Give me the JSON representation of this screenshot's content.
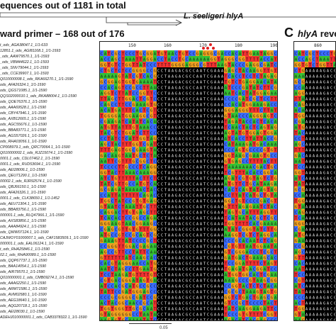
{
  "header": {
    "title": "equences out of 1181 in total",
    "species_name": "L. seeligeri hlyA"
  },
  "panel_b": {
    "title": "ward primer – 168 out of 176",
    "ruler_ticks": [
      "150",
      "160",
      "170",
      "180",
      "190"
    ]
  },
  "panel_c": {
    "letter": "C",
    "title_italic": "hlyA",
    "title_rest": " rever",
    "ruler_tick": "860"
  },
  "sequence_names": [
    "t_ods_AGA38047.1_1/1-633",
    "12851.1_ods_AGI81168.1_1/1-1593",
    "_ods_AAW79570.1_1/1-1593",
    "_ods_VBM44622.1_1/1-1593",
    "_ods_SNV79044.1_1/1-1593",
    "_ods_CCE39907.1_1/1-1593",
    "Q010000008.1_ods_RKA66270.1_1/1-1590",
    "ods_AFA26324.1_1/1-1590",
    "ods_QGS71085.1_1/1-1590",
    "QQS02000010.1_ods_RKA88004.1_1/1-1590",
    "ods_QOE76376.1_1/1-1590",
    "ods_AAA69528.1_1/1-1590",
    "ods_CBY47946.1_1/1-1590",
    "ods_AXB12665.1_1/1-1590",
    "ods_AGC55676.1_1/1-1590",
    "ods_BBA83771.1_1/1-1590",
    "ods_AGS57026.1_1/1-1590",
    "ods_RHA03056.1_1/1-1590",
    "CP008979.1_ods_QRC70064.1_1/1-1590",
    "Q010000002.1_ods_RJZ15074.1_1/1-1590",
    "0001.1_ods_CDL07462.1_1/1-1590",
    "0001.1_ods_RUD53694.1_1/1-1590",
    "ods_AEI28006.1_1/1-1590",
    "ods_QEU71290.1_1/1-1590",
    "00002.1_ods_RJR92574.1_1/1-1590",
    "ods_QBJ66150.1_1/1-1590",
    "ods_AFA26326.1_1/1-1590",
    "0001.1_ods_CLK38650.1_1/1-1452",
    "ods_AEU71304.1_1/1-1590",
    "ods_BBA83756.1_1/1-1590",
    "000001.1_ods_RLQ47966.1_1/1-1590",
    "ods_AXS83856.1_1/1-1590",
    "ods_AAA84924.1_1/1-1590",
    "ods_QWW07124.1_1/1-1590",
    "CAJWOY01000007.1_ods_CAF1583509.1_1/1-1590",
    "000001.1_ods_EAL06124.1_1/1-1590",
    "t_ods_RHA25846.1_1/1-1590",
    "02.1_ods_RHA90089.1_1/1-1590",
    "ods_QQP67737.1_1/1-1590",
    "ods_BAA14054.1_1/1-1590",
    "ods_AIR79570.1_1/1-1590",
    "Q010000001.1_ods_CMB09274.1_1/1-1590",
    "ods_AAA62250.1_1/1-1590",
    "ods_ARM71586.1_1/1-1590",
    "ods_AVM02580.1_1/1-1590",
    "ods_AEG18640.1_1/1-1590",
    "ods_AQG20718.1_1/1-1590",
    "ods_AEI28030.1_1/1-1590",
    "ADEHJ010000001.1_ods_CAB3378322.1_1/1-1590"
  ],
  "alignment": {
    "consensus_header": "GAATCCCCAAACAACCATGAAGAACAGTCCAATCGAAGTAA",
    "primer_region": "CCTAAGACGCCAATCGAAA",
    "row_prefixes": [
      "GAATCCCCAAACAACAAATCGAAGTAACAACAC",
      "CATCCCCCCAAACAACAACCTAAGACGCCAAT",
      "GAATCCCCAAACAACCATGAAGAACAGTCCAA",
      "CATCCTCCCCAGCAACAACCTAAGACGCCAAT",
      "CATCCTCCCCAGCAACAACCTAAGACGCCAAT"
    ]
  },
  "scale_label": "0.05"
}
